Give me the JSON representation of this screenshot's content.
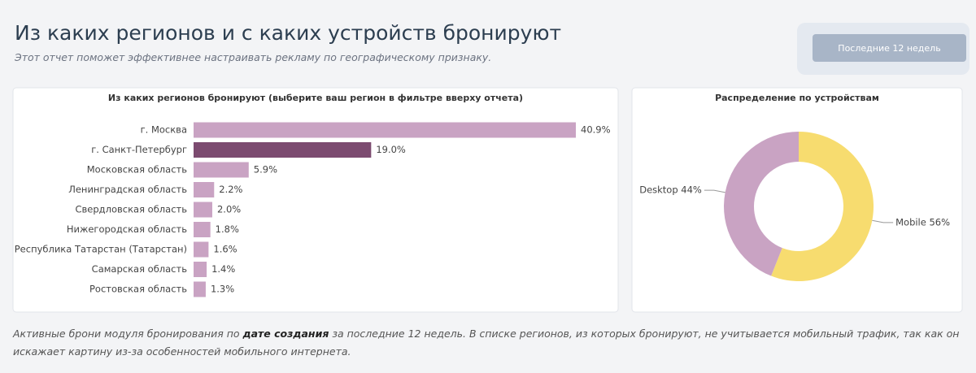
{
  "header": {
    "title": "Из каких регионов и с каких устройств бронируют",
    "subtitle": "Этот отчет поможет эффективнее настраивать рекламу по географическому признаку."
  },
  "button": {
    "label": "Последние 12 недель"
  },
  "chart_data": [
    {
      "type": "bar",
      "orientation": "horizontal",
      "title": "Из каких регионов бронируют (выберите ваш регион в фильтре вверху отчета)",
      "categories": [
        "г. Москва",
        "г. Санкт-Петербург",
        "Московская область",
        "Ленинградская область",
        "Свердловская область",
        "Нижегородская область",
        "Республика Татарстан (Татарстан)",
        "Самарская область",
        "Ростовская область"
      ],
      "values": [
        40.9,
        19.0,
        5.9,
        2.2,
        2.0,
        1.8,
        1.6,
        1.4,
        1.3
      ],
      "value_labels": [
        "40.9%",
        "19.0%",
        "5.9%",
        "2.2%",
        "2.0%",
        "1.8%",
        "1.6%",
        "1.4%",
        "1.3%"
      ],
      "colors": [
        "#c9a3c3",
        "#7c4b70",
        "#c9a3c3",
        "#c9a3c3",
        "#c9a3c3",
        "#c9a3c3",
        "#c9a3c3",
        "#c9a3c3",
        "#c9a3c3"
      ]
    },
    {
      "type": "donut",
      "title": "Распределение по устройствам",
      "categories": [
        "Mobile",
        "Desktop"
      ],
      "values": [
        56,
        44
      ],
      "value_labels": [
        "Mobile 56%",
        "Desktop 44%"
      ],
      "colors": [
        "#f7dc6f",
        "#c9a3c3"
      ]
    }
  ],
  "footer": {
    "parts": [
      "Активные брони модуля бронирования по ",
      "дате создания",
      " за последние 12 недель. В списке регионов, из которых бронируют, не учитывается мобильный трафик, так как он искажает картину из-за особенностей мобильного интернета."
    ]
  }
}
